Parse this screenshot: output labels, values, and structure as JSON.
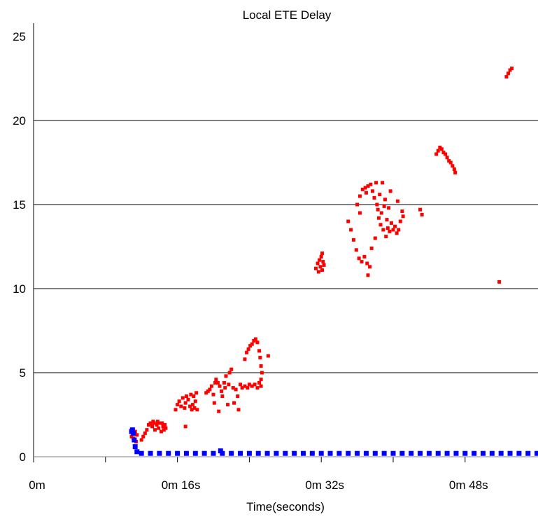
{
  "chart_data": {
    "type": "scatter",
    "title": "Local ETE Delay",
    "xlabel": "Time(seconds)",
    "ylabel": "",
    "x_unit": "seconds",
    "xlim": [
      0,
      56
    ],
    "ylim": [
      0,
      25
    ],
    "x_ticks": [
      {
        "value": 0,
        "label": "0m"
      },
      {
        "value": 16,
        "label": "0m 16s"
      },
      {
        "value": 32,
        "label": "0m 32s"
      },
      {
        "value": 48,
        "label": "0m 48s"
      }
    ],
    "x_minor_ticks": [
      8,
      24,
      40
    ],
    "y_ticks": [
      {
        "value": 0,
        "label": "0"
      },
      {
        "value": 5,
        "label": "5"
      },
      {
        "value": 10,
        "label": "10"
      },
      {
        "value": 15,
        "label": "15"
      },
      {
        "value": 20,
        "label": "20"
      },
      {
        "value": 25,
        "label": "25"
      }
    ],
    "grid": "horizontal at 5, 10, 15, 20",
    "legend": "none",
    "series": [
      {
        "color": "#ff0000",
        "marker": "square",
        "points": [
          [
            10.9,
            1.2
          ],
          [
            11.1,
            1.1
          ],
          [
            11.3,
            1.5
          ],
          [
            11.4,
            0.9
          ],
          [
            11.5,
            1.3
          ],
          [
            12.0,
            1.0
          ],
          [
            12.2,
            1.2
          ],
          [
            12.4,
            1.4
          ],
          [
            12.6,
            1.6
          ],
          [
            12.8,
            1.9
          ],
          [
            13.0,
            2.0
          ],
          [
            13.2,
            1.8
          ],
          [
            13.4,
            2.0
          ],
          [
            13.5,
            1.6
          ],
          [
            13.7,
            1.9
          ],
          [
            13.9,
            1.7
          ],
          [
            14.0,
            2.0
          ],
          [
            14.2,
            1.5
          ],
          [
            14.4,
            1.8
          ],
          [
            14.5,
            1.6
          ],
          [
            14.6,
            1.9
          ],
          [
            14.7,
            1.7
          ],
          [
            13.3,
            2.1
          ],
          [
            13.8,
            2.1
          ],
          [
            14.3,
            2.0
          ],
          [
            15.8,
            2.8
          ],
          [
            16.0,
            3.1
          ],
          [
            16.2,
            3.3
          ],
          [
            16.4,
            3.0
          ],
          [
            16.6,
            3.5
          ],
          [
            16.8,
            2.9
          ],
          [
            16.9,
            3.2
          ],
          [
            17.0,
            3.6
          ],
          [
            17.2,
            3.4
          ],
          [
            17.4,
            3.0
          ],
          [
            17.5,
            3.7
          ],
          [
            17.6,
            2.8
          ],
          [
            17.7,
            3.1
          ],
          [
            17.8,
            3.6
          ],
          [
            17.9,
            2.9
          ],
          [
            18.0,
            3.3
          ],
          [
            18.1,
            3.8
          ],
          [
            18.2,
            2.8
          ],
          [
            16.9,
            1.8
          ],
          [
            19.2,
            3.8
          ],
          [
            19.4,
            3.9
          ],
          [
            19.6,
            4.0
          ],
          [
            19.8,
            4.2
          ],
          [
            20.0,
            3.7
          ],
          [
            20.1,
            3.2
          ],
          [
            20.2,
            4.4
          ],
          [
            20.3,
            4.6
          ],
          [
            20.5,
            4.4
          ],
          [
            20.6,
            2.7
          ],
          [
            20.7,
            4.2
          ],
          [
            20.9,
            3.9
          ],
          [
            21.0,
            3.6
          ],
          [
            21.2,
            4.4
          ],
          [
            21.3,
            4.1
          ],
          [
            21.4,
            4.8
          ],
          [
            21.6,
            3.1
          ],
          [
            21.7,
            4.3
          ],
          [
            21.8,
            5.0
          ],
          [
            22.0,
            5.2
          ],
          [
            22.2,
            4.1
          ],
          [
            22.3,
            3.2
          ],
          [
            22.5,
            4.0
          ],
          [
            22.7,
            3.6
          ],
          [
            22.8,
            2.8
          ],
          [
            23.0,
            4.3
          ],
          [
            23.2,
            4.1
          ],
          [
            23.5,
            4.2
          ],
          [
            23.8,
            4.1
          ],
          [
            24.0,
            4.3
          ],
          [
            24.3,
            4.2
          ],
          [
            24.6,
            4.3
          ],
          [
            24.9,
            4.1
          ],
          [
            25.1,
            4.4
          ],
          [
            25.3,
            4.2
          ],
          [
            23.5,
            5.8
          ],
          [
            23.7,
            6.2
          ],
          [
            23.9,
            6.4
          ],
          [
            24.1,
            6.6
          ],
          [
            24.3,
            6.7
          ],
          [
            24.5,
            6.9
          ],
          [
            24.7,
            7.0
          ],
          [
            24.9,
            6.8
          ],
          [
            25.1,
            6.3
          ],
          [
            25.2,
            5.9
          ],
          [
            25.3,
            5.4
          ],
          [
            25.4,
            5.0
          ],
          [
            25.3,
            4.6
          ],
          [
            26.1,
            6.0
          ],
          [
            31.4,
            11.2
          ],
          [
            31.6,
            11.5
          ],
          [
            31.7,
            11.0
          ],
          [
            31.8,
            11.7
          ],
          [
            31.9,
            11.3
          ],
          [
            32.0,
            11.9
          ],
          [
            32.1,
            11.1
          ],
          [
            32.2,
            11.6
          ],
          [
            32.3,
            11.4
          ],
          [
            32.1,
            12.1
          ],
          [
            35.0,
            14.0
          ],
          [
            35.3,
            13.5
          ],
          [
            35.6,
            12.9
          ],
          [
            35.9,
            12.3
          ],
          [
            36.2,
            11.8
          ],
          [
            36.5,
            11.6
          ],
          [
            36.8,
            11.9
          ],
          [
            37.1,
            11.5
          ],
          [
            37.4,
            11.3
          ],
          [
            37.2,
            10.8
          ],
          [
            36.0,
            15.0
          ],
          [
            36.3,
            15.5
          ],
          [
            36.6,
            15.9
          ],
          [
            36.9,
            16.0
          ],
          [
            37.2,
            16.1
          ],
          [
            37.5,
            16.2
          ],
          [
            37.7,
            15.8
          ],
          [
            37.9,
            15.4
          ],
          [
            38.1,
            16.3
          ],
          [
            38.2,
            15.0
          ],
          [
            38.3,
            14.7
          ],
          [
            38.4,
            14.2
          ],
          [
            38.5,
            15.6
          ],
          [
            38.6,
            13.8
          ],
          [
            38.7,
            14.5
          ],
          [
            38.8,
            16.3
          ],
          [
            38.9,
            13.5
          ],
          [
            39.0,
            14.9
          ],
          [
            39.1,
            15.3
          ],
          [
            39.2,
            13.1
          ],
          [
            39.3,
            14.1
          ],
          [
            39.4,
            13.6
          ],
          [
            39.5,
            14.8
          ],
          [
            39.6,
            13.4
          ],
          [
            39.8,
            13.9
          ],
          [
            40.0,
            13.5
          ],
          [
            40.2,
            13.7
          ],
          [
            40.4,
            13.3
          ],
          [
            40.6,
            13.5
          ],
          [
            40.8,
            14.0
          ],
          [
            41.0,
            14.6
          ],
          [
            41.1,
            14.3
          ],
          [
            40.5,
            15.2
          ],
          [
            38.0,
            13.0
          ],
          [
            37.6,
            12.4
          ],
          [
            36.3,
            14.5
          ],
          [
            39.7,
            15.8
          ],
          [
            37.0,
            15.7
          ],
          [
            43.0,
            14.7
          ],
          [
            43.2,
            14.4
          ],
          [
            44.8,
            18.0
          ],
          [
            45.0,
            18.2
          ],
          [
            45.2,
            18.4
          ],
          [
            45.4,
            18.3
          ],
          [
            45.6,
            18.1
          ],
          [
            45.8,
            18.0
          ],
          [
            46.0,
            17.8
          ],
          [
            46.2,
            17.6
          ],
          [
            46.4,
            17.5
          ],
          [
            46.6,
            17.3
          ],
          [
            46.8,
            17.1
          ],
          [
            46.9,
            16.9
          ],
          [
            51.8,
            10.4
          ],
          [
            52.6,
            22.6
          ],
          [
            52.8,
            22.8
          ],
          [
            53.0,
            23.0
          ],
          [
            53.2,
            23.1
          ]
        ]
      },
      {
        "color": "#0000ff",
        "marker": "square",
        "points": [
          [
            10.9,
            1.5
          ],
          [
            11.0,
            1.6
          ],
          [
            11.1,
            1.4
          ],
          [
            11.2,
            1.0
          ],
          [
            11.3,
            0.6
          ],
          [
            11.5,
            0.3
          ],
          [
            12,
            0.2
          ],
          [
            13,
            0.2
          ],
          [
            14,
            0.2
          ],
          [
            15,
            0.2
          ],
          [
            16,
            0.2
          ],
          [
            17,
            0.2
          ],
          [
            18,
            0.2
          ],
          [
            19,
            0.2
          ],
          [
            20,
            0.2
          ],
          [
            20.8,
            0.35
          ],
          [
            21,
            0.2
          ],
          [
            22,
            0.2
          ],
          [
            23,
            0.2
          ],
          [
            24,
            0.2
          ],
          [
            25,
            0.2
          ],
          [
            26,
            0.2
          ],
          [
            27,
            0.2
          ],
          [
            28,
            0.2
          ],
          [
            29,
            0.2
          ],
          [
            30,
            0.2
          ],
          [
            31,
            0.2
          ],
          [
            32,
            0.2
          ],
          [
            33,
            0.2
          ],
          [
            34,
            0.2
          ],
          [
            35,
            0.2
          ],
          [
            36,
            0.2
          ],
          [
            37,
            0.2
          ],
          [
            38,
            0.2
          ],
          [
            39,
            0.2
          ],
          [
            40,
            0.2
          ],
          [
            41,
            0.2
          ],
          [
            42,
            0.2
          ],
          [
            43,
            0.2
          ],
          [
            44,
            0.2
          ],
          [
            45,
            0.2
          ],
          [
            46,
            0.2
          ],
          [
            47,
            0.2
          ],
          [
            48,
            0.2
          ],
          [
            49,
            0.2
          ],
          [
            50,
            0.2
          ],
          [
            51,
            0.2
          ],
          [
            52,
            0.2
          ],
          [
            53,
            0.2
          ],
          [
            54,
            0.2
          ],
          [
            55,
            0.2
          ],
          [
            56,
            0.2
          ]
        ]
      }
    ]
  }
}
